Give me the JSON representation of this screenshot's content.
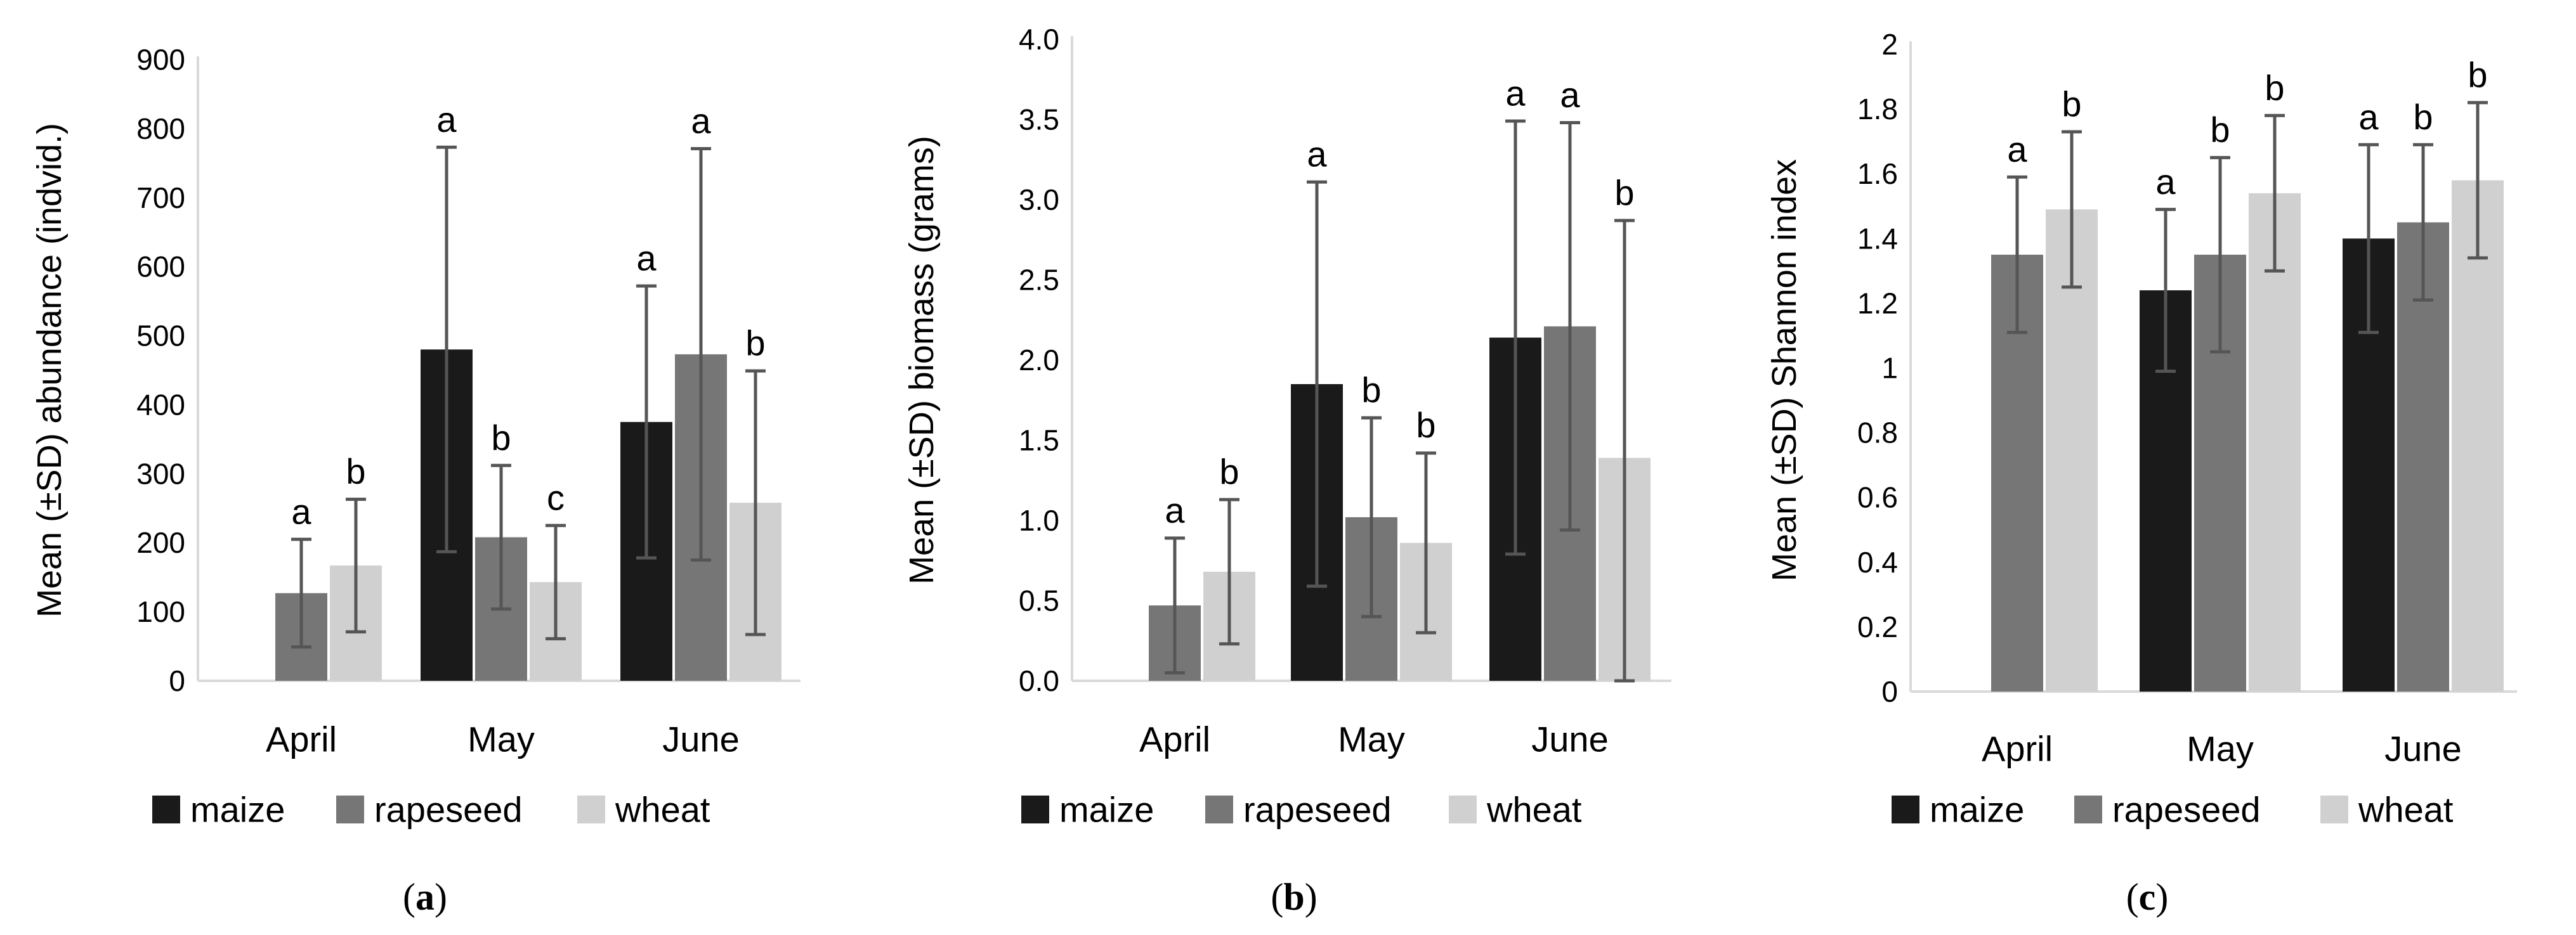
{
  "colors": {
    "maize": "#1a1a1a",
    "rapeseed": "#767676",
    "wheat": "#d0d0d0",
    "axis": "#d9d9d9",
    "errorbar": "#555555",
    "text": "#000000"
  },
  "chart_data": [
    {
      "panel": "(a)",
      "type": "bar",
      "title": "",
      "xlabel": "",
      "ylabel": "Mean (±SD) abundance (indvid.)",
      "categories": [
        "April",
        "May",
        "June"
      ],
      "ylim": [
        0,
        900
      ],
      "yticks": [
        0,
        100,
        200,
        300,
        400,
        500,
        600,
        700,
        800,
        900
      ],
      "ytick_labels": [
        "0",
        "100",
        "200",
        "300",
        "400",
        "500",
        "600",
        "700",
        "800",
        "900"
      ],
      "legend_position": "bottom",
      "series": [
        {
          "name": "maize",
          "values": [
            null,
            480,
            375
          ],
          "errors": [
            null,
            293,
            197
          ],
          "letters": [
            "",
            "a",
            "a"
          ]
        },
        {
          "name": "rapeseed",
          "values": [
            127,
            208,
            473
          ],
          "errors": [
            78,
            104,
            298
          ],
          "letters": [
            "a",
            "b",
            "a"
          ]
        },
        {
          "name": "wheat",
          "values": [
            167,
            143,
            258
          ],
          "errors": [
            96,
            82,
            191
          ],
          "letters": [
            "b",
            "c",
            "b"
          ]
        }
      ]
    },
    {
      "panel": "(b)",
      "type": "bar",
      "title": "",
      "xlabel": "",
      "ylabel": "Mean (±SD) biomass (grams)",
      "categories": [
        "April",
        "May",
        "June"
      ],
      "ylim": [
        0,
        4.0
      ],
      "yticks": [
        0,
        0.5,
        1.0,
        1.5,
        2.0,
        2.5,
        3.0,
        3.5,
        4.0
      ],
      "ytick_labels": [
        "0.0",
        "0.5",
        "1.0",
        "1.5",
        "2.0",
        "2.5",
        "3.0",
        "3.5",
        "4.0"
      ],
      "legend_position": "bottom",
      "series": [
        {
          "name": "maize",
          "values": [
            null,
            1.85,
            2.14
          ],
          "errors": [
            null,
            1.26,
            1.35
          ],
          "letters": [
            "",
            "a",
            "a"
          ]
        },
        {
          "name": "rapeseed",
          "values": [
            0.47,
            1.02,
            2.21
          ],
          "errors": [
            0.42,
            0.62,
            1.27
          ],
          "letters": [
            "a",
            "b",
            "a"
          ]
        },
        {
          "name": "wheat",
          "values": [
            0.68,
            0.86,
            1.39
          ],
          "errors": [
            0.45,
            0.56,
            1.48
          ],
          "letters": [
            "b",
            "b",
            "b"
          ]
        }
      ]
    },
    {
      "panel": "(c)",
      "type": "bar",
      "title": "",
      "xlabel": "",
      "ylabel": "Mean (±SD) Shannon index",
      "categories": [
        "April",
        "May",
        "June"
      ],
      "ylim": [
        0,
        2
      ],
      "yticks": [
        0,
        0.2,
        0.4,
        0.6,
        0.8,
        1,
        1.2,
        1.4,
        1.6,
        1.8,
        2
      ],
      "ytick_labels": [
        "0",
        "0.2",
        "0.4",
        "0.6",
        "0.8",
        "1",
        "1.2",
        "1.4",
        "1.6",
        "1.8",
        "2"
      ],
      "legend_position": "bottom",
      "series": [
        {
          "name": "maize",
          "values": [
            null,
            1.24,
            1.4
          ],
          "errors": [
            null,
            0.25,
            0.29
          ],
          "letters": [
            "",
            "a",
            "a"
          ]
        },
        {
          "name": "rapeseed",
          "values": [
            1.35,
            1.35,
            1.45
          ],
          "errors": [
            0.24,
            0.3,
            0.24
          ],
          "letters": [
            "a",
            "b",
            "b"
          ]
        },
        {
          "name": "wheat",
          "values": [
            1.49,
            1.54,
            1.58
          ],
          "errors": [
            0.24,
            0.24,
            0.24
          ],
          "letters": [
            "b",
            "b",
            "b"
          ]
        }
      ]
    }
  ]
}
